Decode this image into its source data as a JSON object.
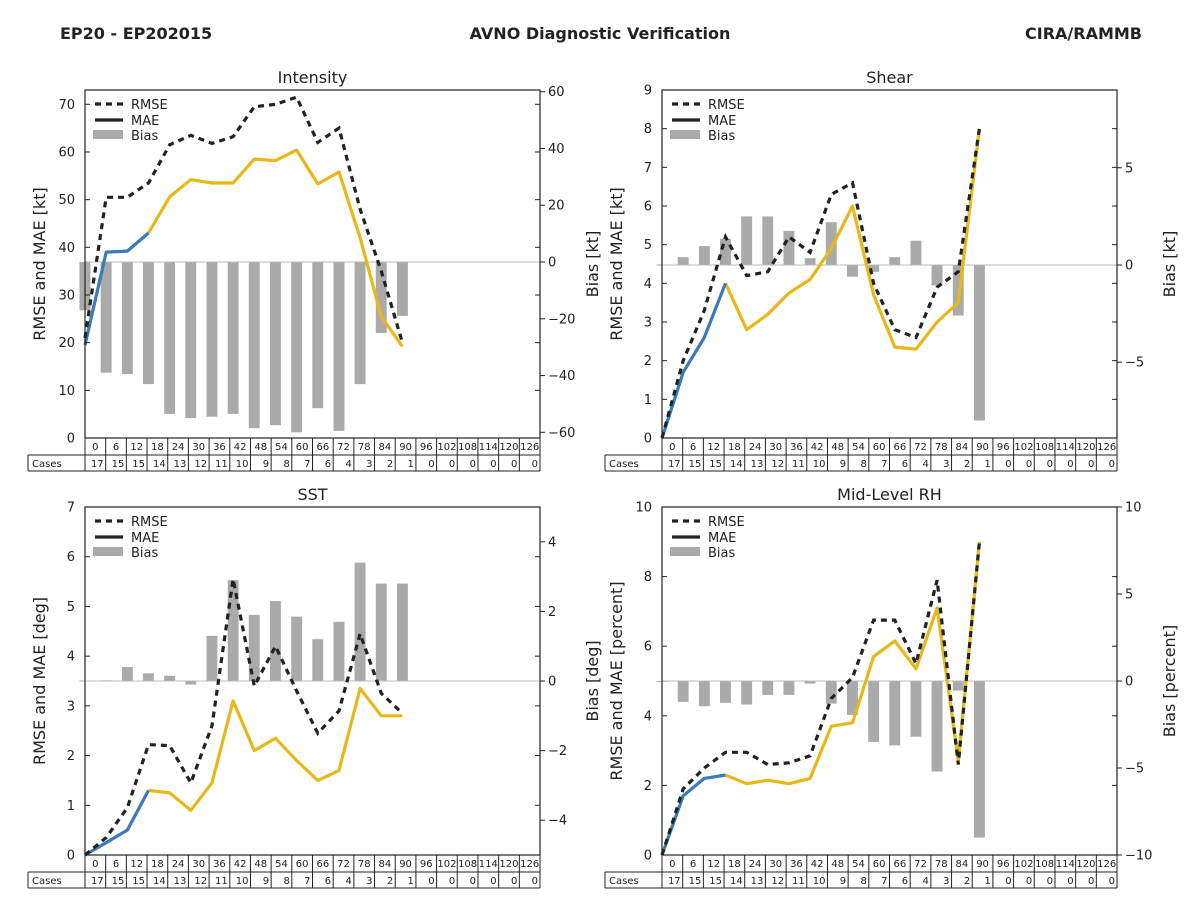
{
  "header": {
    "left": "EP20 - EP202015",
    "center": "AVNO Diagnostic Verification",
    "right": "CIRA/RAMMB"
  },
  "colors": {
    "rmse": "#222222",
    "mae_early": "#3a7ab6",
    "mae_late": "#e8b81a",
    "bias": "#aaaaaa",
    "zero_line": "#bbbbbb",
    "axis": "#222222"
  },
  "table": {
    "cases_label": "Cases",
    "hours": [
      0,
      6,
      12,
      18,
      24,
      30,
      36,
      42,
      48,
      54,
      60,
      66,
      72,
      78,
      84,
      90,
      96,
      102,
      108,
      114,
      120,
      126
    ],
    "cases": [
      17,
      15,
      15,
      14,
      13,
      12,
      11,
      10,
      9,
      8,
      7,
      6,
      4,
      3,
      2,
      1,
      0,
      0,
      0,
      0,
      0,
      0
    ]
  },
  "legend": {
    "rmse": "RMSE",
    "mae": "MAE",
    "bias": "Bias"
  },
  "chart_data": [
    {
      "type": "line+bar",
      "title": "Intensity",
      "ylabel": "RMSE and MAE [kt]",
      "y2label": "Bias [kt]",
      "ylim": [
        0,
        73
      ],
      "yticks": [
        0,
        10,
        20,
        30,
        40,
        50,
        60,
        70
      ],
      "y2lim": [
        -62,
        60.6
      ],
      "y2ticks": [
        -60,
        -40,
        -20,
        0,
        20,
        40,
        60
      ],
      "x": [
        0,
        6,
        12,
        18,
        24,
        30,
        36,
        42,
        48,
        54,
        60,
        66,
        72,
        78,
        84,
        90
      ],
      "rmse": [
        21,
        50.5,
        50.5,
        53.5,
        61.5,
        63.5,
        61.8,
        63.2,
        69.5,
        70,
        71.5,
        62,
        65,
        48,
        35,
        20
      ],
      "mae": [
        19.5,
        39,
        39.2,
        43,
        50.6,
        54.2,
        53.5,
        53.5,
        58.5,
        58.2,
        60.4,
        53.3,
        55.8,
        42,
        25.5,
        19.2
      ],
      "mae_split_index": 3,
      "bias": [
        -17,
        -39,
        -39.5,
        -43,
        -53.5,
        -55,
        -54.5,
        -53.5,
        -58.5,
        -57.5,
        -60,
        -51.5,
        -59.5,
        -43,
        -25,
        -19
      ]
    },
    {
      "type": "line+bar",
      "title": "Shear",
      "ylabel": "RMSE and MAE [kt]",
      "y2label": "Bias [kt]",
      "ylim": [
        0,
        9
      ],
      "yticks": [
        0,
        1,
        2,
        3,
        4,
        5,
        6,
        7,
        8,
        9
      ],
      "y2lim": [
        -8.9,
        9
      ],
      "y2ticks": [
        -5,
        0,
        5
      ],
      "x": [
        0,
        6,
        12,
        18,
        24,
        30,
        36,
        42,
        48,
        54,
        60,
        66,
        72,
        78,
        84,
        90
      ],
      "rmse": [
        0,
        2,
        3.3,
        5.2,
        4.2,
        4.3,
        5.2,
        4.8,
        6.3,
        6.6,
        4,
        2.8,
        2.6,
        3.9,
        4.3,
        8
      ],
      "mae": [
        0,
        1.7,
        2.6,
        4,
        2.8,
        3.2,
        3.75,
        4.1,
        4.9,
        6,
        3.7,
        2.35,
        2.3,
        3,
        3.5,
        8
      ],
      "mae_split_index": 3,
      "bias": [
        0,
        0.4,
        0.97,
        1.35,
        2.5,
        2.5,
        1.75,
        0.35,
        2.2,
        -0.6,
        -0.35,
        0.4,
        1.25,
        -1.05,
        -2.6,
        -8
      ]
    },
    {
      "type": "line+bar",
      "title": "SST",
      "ylabel": "RMSE and MAE [deg]",
      "y2label": "Bias [deg]",
      "ylim": [
        0,
        7
      ],
      "yticks": [
        0,
        1,
        2,
        3,
        4,
        5,
        6,
        7
      ],
      "y2lim": [
        -5,
        5
      ],
      "y2ticks": [
        -4,
        -2,
        0,
        2,
        4
      ],
      "x": [
        0,
        6,
        12,
        18,
        24,
        30,
        36,
        42,
        48,
        54,
        60,
        66,
        72,
        78,
        84,
        90
      ],
      "rmse": [
        0,
        0.35,
        0.95,
        2.22,
        2.2,
        1.45,
        2.6,
        5.55,
        3.4,
        4.2,
        3.3,
        2.45,
        2.9,
        4.45,
        3.25,
        2.85
      ],
      "mae": [
        0,
        0.25,
        0.5,
        1.3,
        1.25,
        0.9,
        1.45,
        3.1,
        2.1,
        2.35,
        1.9,
        1.5,
        1.7,
        3.35,
        2.8,
        2.8
      ],
      "mae_split_index": 3,
      "bias": [
        0,
        0.02,
        0.4,
        0.22,
        0.15,
        -0.1,
        1.3,
        2.9,
        1.9,
        2.3,
        1.85,
        1.2,
        1.7,
        3.4,
        2.8,
        2.8
      ]
    },
    {
      "type": "line+bar",
      "title": "Mid-Level RH",
      "ylabel": "RMSE and MAE [percent]",
      "y2label": "Bias [percent]",
      "ylim": [
        0,
        10
      ],
      "yticks": [
        0,
        2,
        4,
        6,
        8,
        10
      ],
      "y2lim": [
        -10,
        10
      ],
      "y2ticks": [
        -10,
        -5,
        0,
        5,
        10
      ],
      "x": [
        0,
        6,
        12,
        18,
        24,
        30,
        36,
        42,
        48,
        54,
        60,
        66,
        72,
        78,
        84,
        90
      ],
      "rmse": [
        0,
        1.9,
        2.5,
        2.95,
        2.95,
        2.6,
        2.65,
        2.85,
        4.5,
        5.1,
        6.75,
        6.75,
        5.5,
        7.9,
        2.6,
        9
      ],
      "mae": [
        0,
        1.7,
        2.2,
        2.3,
        2.05,
        2.15,
        2.05,
        2.2,
        3.7,
        3.8,
        5.7,
        6.15,
        5.35,
        7.1,
        2.7,
        9
      ],
      "mae_split_index": 3,
      "bias": [
        -0.05,
        -1.2,
        -1.45,
        -1.25,
        -1.35,
        -0.8,
        -0.8,
        -0.15,
        -1.3,
        -1.95,
        -3.5,
        -3.7,
        -3.2,
        -5.2,
        -0.55,
        -9
      ]
    }
  ]
}
